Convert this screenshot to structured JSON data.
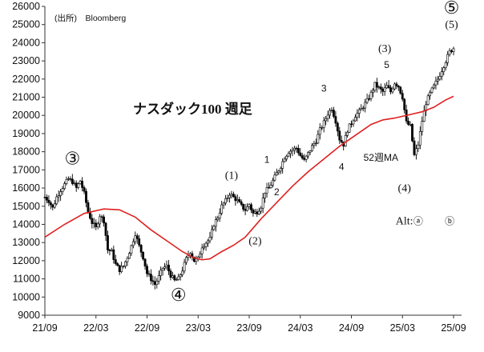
{
  "chart_data": {
    "type": "candlestick",
    "title": "ナスダック100 週足",
    "source": "(出所)　Bloomberg",
    "xlabel": "",
    "ylabel": "",
    "ylim": [
      9000,
      26000
    ],
    "yticks": [
      9000,
      10000,
      11000,
      12000,
      13000,
      14000,
      15000,
      16000,
      17000,
      18000,
      19000,
      20000,
      21000,
      22000,
      23000,
      24000,
      25000,
      26000
    ],
    "x_tick_labels": [
      "21/09",
      "22/03",
      "22/09",
      "23/03",
      "23/09",
      "24/03",
      "24/09",
      "25/03",
      "25/09"
    ],
    "x_tick_weeks": [
      0,
      26,
      52,
      78,
      104,
      130,
      156,
      182,
      208
    ],
    "grid": false,
    "series": [
      {
        "name": "",
        "kind": "weekly-close",
        "values": [
          [
            0,
            15500
          ],
          [
            2,
            15300
          ],
          [
            4,
            14900
          ],
          [
            6,
            15500
          ],
          [
            8,
            15900
          ],
          [
            10,
            16200
          ],
          [
            12,
            16500
          ],
          [
            14,
            16350
          ],
          [
            16,
            16000
          ],
          [
            18,
            16400
          ],
          [
            20,
            15700
          ],
          [
            22,
            14700
          ],
          [
            24,
            14100
          ],
          [
            26,
            13800
          ],
          [
            28,
            14500
          ],
          [
            30,
            14200
          ],
          [
            32,
            12600
          ],
          [
            34,
            12500
          ],
          [
            36,
            11800
          ],
          [
            38,
            11500
          ],
          [
            40,
            11700
          ],
          [
            42,
            12200
          ],
          [
            44,
            12800
          ],
          [
            46,
            13500
          ],
          [
            48,
            12800
          ],
          [
            50,
            12200
          ],
          [
            52,
            11300
          ],
          [
            54,
            11000
          ],
          [
            56,
            10700
          ],
          [
            58,
            11100
          ],
          [
            60,
            11600
          ],
          [
            62,
            11700
          ],
          [
            64,
            11200
          ],
          [
            66,
            10900
          ],
          [
            68,
            11000
          ],
          [
            70,
            11500
          ],
          [
            72,
            12100
          ],
          [
            74,
            12500
          ],
          [
            76,
            12000
          ],
          [
            78,
            12100
          ],
          [
            80,
            12800
          ],
          [
            82,
            13000
          ],
          [
            84,
            13200
          ],
          [
            86,
            14000
          ],
          [
            88,
            14400
          ],
          [
            90,
            15000
          ],
          [
            92,
            15300
          ],
          [
            94,
            15700
          ],
          [
            96,
            15500
          ],
          [
            98,
            15300
          ],
          [
            100,
            15000
          ],
          [
            102,
            14800
          ],
          [
            104,
            15100
          ],
          [
            106,
            14600
          ],
          [
            108,
            14700
          ],
          [
            110,
            15000
          ],
          [
            112,
            15800
          ],
          [
            114,
            16000
          ],
          [
            116,
            16400
          ],
          [
            118,
            16800
          ],
          [
            120,
            17200
          ],
          [
            122,
            17700
          ],
          [
            124,
            18000
          ],
          [
            126,
            18100
          ],
          [
            128,
            18200
          ],
          [
            130,
            17800
          ],
          [
            132,
            17500
          ],
          [
            134,
            17900
          ],
          [
            136,
            18300
          ],
          [
            138,
            18600
          ],
          [
            140,
            19200
          ],
          [
            142,
            19600
          ],
          [
            144,
            20100
          ],
          [
            146,
            20400
          ],
          [
            148,
            19700
          ],
          [
            150,
            18700
          ],
          [
            152,
            18400
          ],
          [
            154,
            19200
          ],
          [
            156,
            19600
          ],
          [
            158,
            20000
          ],
          [
            160,
            20200
          ],
          [
            162,
            20500
          ],
          [
            164,
            20800
          ],
          [
            166,
            21200
          ],
          [
            168,
            21700
          ],
          [
            170,
            21500
          ],
          [
            172,
            21300
          ],
          [
            174,
            21600
          ],
          [
            176,
            21300
          ],
          [
            178,
            21800
          ],
          [
            180,
            21600
          ],
          [
            182,
            21000
          ],
          [
            184,
            19600
          ],
          [
            186,
            19400
          ],
          [
            188,
            17800
          ],
          [
            190,
            18400
          ],
          [
            192,
            19700
          ],
          [
            194,
            20700
          ],
          [
            196,
            21200
          ],
          [
            198,
            21600
          ],
          [
            200,
            22000
          ],
          [
            202,
            22500
          ],
          [
            204,
            23000
          ],
          [
            206,
            23500
          ],
          [
            208,
            23700
          ]
        ]
      },
      {
        "name": "52週MA",
        "kind": "moving-average",
        "color": "#e02020",
        "values": [
          [
            0,
            13300
          ],
          [
            10,
            14000
          ],
          [
            20,
            14600
          ],
          [
            30,
            14850
          ],
          [
            38,
            14800
          ],
          [
            46,
            14400
          ],
          [
            54,
            13700
          ],
          [
            62,
            13100
          ],
          [
            70,
            12500
          ],
          [
            76,
            12150
          ],
          [
            80,
            12050
          ],
          [
            84,
            12100
          ],
          [
            90,
            12500
          ],
          [
            96,
            12850
          ],
          [
            102,
            13300
          ],
          [
            110,
            14300
          ],
          [
            118,
            15200
          ],
          [
            126,
            16100
          ],
          [
            134,
            16900
          ],
          [
            142,
            17600
          ],
          [
            150,
            18300
          ],
          [
            158,
            18900
          ],
          [
            166,
            19500
          ],
          [
            172,
            19750
          ],
          [
            178,
            19850
          ],
          [
            186,
            20050
          ],
          [
            192,
            20200
          ],
          [
            198,
            20450
          ],
          [
            204,
            20850
          ],
          [
            208,
            21050
          ]
        ]
      }
    ],
    "annotations": [
      {
        "text": "③",
        "x": 14,
        "y": 17300
      },
      {
        "text": "④",
        "x": 68,
        "y": 9800
      },
      {
        "text": "(1)",
        "x": 95,
        "y": 16500
      },
      {
        "text": "(2)",
        "x": 107,
        "y": 12900
      },
      {
        "text": "1",
        "x": 113,
        "y": 17400
      },
      {
        "text": "2",
        "x": 118,
        "y": 15600
      },
      {
        "text": "3",
        "x": 142,
        "y": 21300
      },
      {
        "text": "4",
        "x": 151,
        "y": 17000
      },
      {
        "text": "5",
        "x": 174,
        "y": 22600
      },
      {
        "text": "(3)",
        "x": 173,
        "y": 23500
      },
      {
        "text": "(4)",
        "x": 183,
        "y": 15800
      },
      {
        "text": "(5)",
        "x": 207,
        "y": 24800
      },
      {
        "text": "⑤",
        "x": 207,
        "y": 25600
      },
      {
        "text": "Alt:",
        "x": 183,
        "y": 14000
      },
      {
        "text": "ⓐ",
        "x": 190,
        "y": 14000
      },
      {
        "text": "ⓑ",
        "x": 206,
        "y": 14000
      },
      {
        "text": "52週MA",
        "x": 171,
        "y": 17500
      }
    ]
  }
}
